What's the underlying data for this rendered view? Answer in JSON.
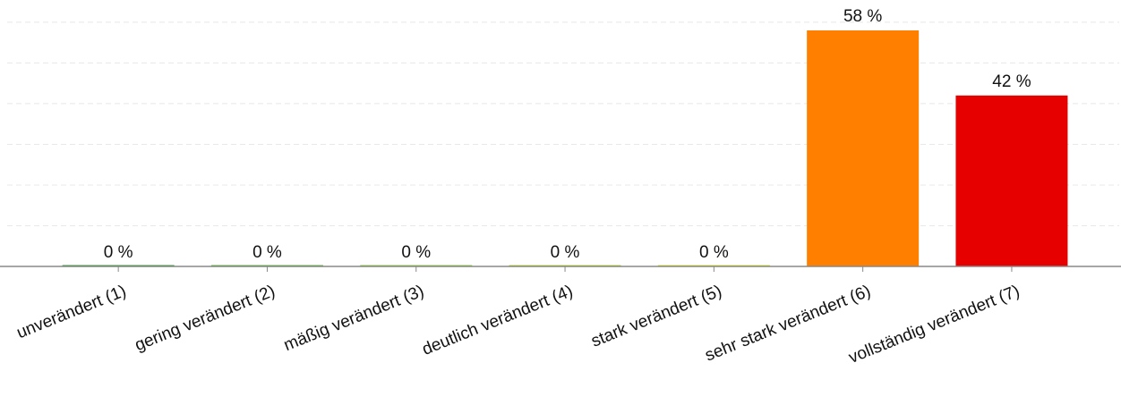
{
  "chart_data": {
    "type": "bar",
    "categories": [
      "unverändert (1)",
      "gering verändert (2)",
      "mäßig verändert (3)",
      "deutlich verändert (4)",
      "stark verändert (5)",
      "sehr stark verändert (6)",
      "vollständig verändert (7)"
    ],
    "values": [
      0,
      0,
      0,
      0,
      0,
      58,
      42
    ],
    "value_labels": [
      "0 %",
      "0 %",
      "0 %",
      "0 %",
      "0 %",
      "58 %",
      "42 %"
    ],
    "colors": [
      "#3a9a3a",
      "#5fb43c",
      "#8cc83c",
      "#b4d232",
      "#d2dc28",
      "#ff8000",
      "#e60000"
    ],
    "title": "",
    "xlabel": "",
    "ylabel": "",
    "ylim": [
      0,
      60
    ],
    "grid": true,
    "legend": "none"
  }
}
